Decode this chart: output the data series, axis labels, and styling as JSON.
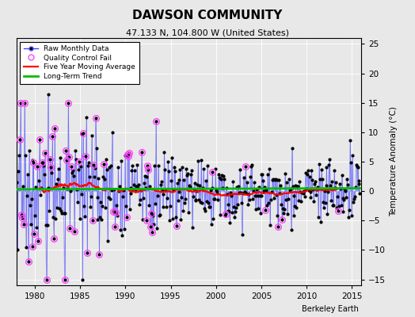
{
  "title": "DAWSON COMMUNITY",
  "subtitle": "47.133 N, 104.800 W (United States)",
  "ylabel": "Temperature Anomaly (°C)",
  "xlabel_note": "Berkeley Earth",
  "xlim": [
    1978,
    2016
  ],
  "ylim": [
    -16,
    26
  ],
  "yticks": [
    -15,
    -10,
    -5,
    0,
    5,
    10,
    15,
    20,
    25
  ],
  "xticks": [
    1980,
    1985,
    1990,
    1995,
    2000,
    2005,
    2010,
    2015
  ],
  "raw_color": "#4444ff",
  "qc_color": "#ff44ff",
  "moving_avg_color": "#ff0000",
  "trend_color": "#00bb00",
  "background_color": "#e8e8e8",
  "seed": 17
}
